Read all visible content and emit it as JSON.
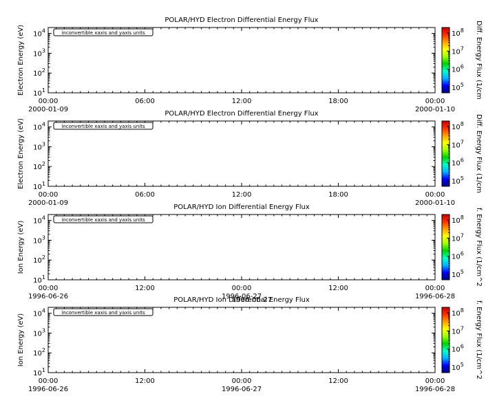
{
  "chart_data": [
    {
      "type": "heatmap",
      "title": "POLAR/HYD  Electron Differential Energy Flux",
      "ylabel": "Electron Energy (eV)",
      "ylim": [
        10,
        20000
      ],
      "yscale": "log",
      "y_ticks": [
        {
          "base": "10",
          "exp": "1"
        },
        {
          "base": "10",
          "exp": "2"
        },
        {
          "base": "10",
          "exp": "3"
        },
        {
          "base": "10",
          "exp": "4"
        }
      ],
      "x_ticks": [
        {
          "time": "00:00",
          "date": "2000-01-09"
        },
        {
          "time": "06:00",
          "date": ""
        },
        {
          "time": "12:00",
          "date": ""
        },
        {
          "time": "18:00",
          "date": ""
        },
        {
          "time": "00:00",
          "date": "2000-01-10"
        }
      ],
      "annotation": "inconvertible xaxis and yaxis units",
      "colorbar": {
        "label": "Diff. Energy Flux (1/cm",
        "ticks": [
          {
            "base": "10",
            "exp": "5"
          },
          {
            "base": "10",
            "exp": "6"
          },
          {
            "base": "10",
            "exp": "7"
          },
          {
            "base": "10",
            "exp": "8"
          }
        ]
      },
      "overlay_text": ""
    },
    {
      "type": "heatmap",
      "title": "POLAR/HYD  Electron Differential Energy Flux",
      "ylabel": "Electron Energy (eV)",
      "ylim": [
        10,
        20000
      ],
      "yscale": "log",
      "y_ticks": [
        {
          "base": "10",
          "exp": "1"
        },
        {
          "base": "10",
          "exp": "2"
        },
        {
          "base": "10",
          "exp": "3"
        },
        {
          "base": "10",
          "exp": "4"
        }
      ],
      "x_ticks": [
        {
          "time": "00:00",
          "date": "2000-01-09"
        },
        {
          "time": "06:00",
          "date": ""
        },
        {
          "time": "12:00",
          "date": ""
        },
        {
          "time": "18:00",
          "date": ""
        },
        {
          "time": "00:00",
          "date": "2000-01-10"
        }
      ],
      "annotation": "inconvertible xaxis and yaxis units",
      "colorbar": {
        "label": "Diff. Energy Flux (1/cm",
        "ticks": [
          {
            "base": "10",
            "exp": "5"
          },
          {
            "base": "10",
            "exp": "6"
          },
          {
            "base": "10",
            "exp": "7"
          },
          {
            "base": "10",
            "exp": "8"
          }
        ]
      },
      "overlay_text": ""
    },
    {
      "type": "heatmap",
      "title": "POLAR/HYD  Ion Differential Energy Flux",
      "ylabel": "Ion Energy (eV)",
      "ylim": [
        10,
        20000
      ],
      "yscale": "log",
      "y_ticks": [
        {
          "base": "10",
          "exp": "1"
        },
        {
          "base": "10",
          "exp": "2"
        },
        {
          "base": "10",
          "exp": "3"
        },
        {
          "base": "10",
          "exp": "4"
        }
      ],
      "x_ticks": [
        {
          "time": "00:00",
          "date": "1996-06-26"
        },
        {
          "time": "12:00",
          "date": ""
        },
        {
          "time": "00:00",
          "date": "1996-06-27"
        },
        {
          "time": "12:00",
          "date": ""
        },
        {
          "time": "00:00",
          "date": "1996-06-28"
        }
      ],
      "annotation": "inconvertible xaxis and yaxis units",
      "colorbar": {
        "label": "f. Energy Flux (1/cm^2",
        "ticks": [
          {
            "base": "10",
            "exp": "5"
          },
          {
            "base": "10",
            "exp": "6"
          },
          {
            "base": "10",
            "exp": "7"
          },
          {
            "base": "10",
            "exp": "8"
          }
        ]
      },
      "overlay_text": ""
    },
    {
      "type": "heatmap",
      "title": "POLAR/HYD  Ion Differential Energy Flux",
      "ylabel": "Ion Energy (eV)",
      "ylim": [
        10,
        20000
      ],
      "yscale": "log",
      "y_ticks": [
        {
          "base": "10",
          "exp": "1"
        },
        {
          "base": "10",
          "exp": "2"
        },
        {
          "base": "10",
          "exp": "3"
        },
        {
          "base": "10",
          "exp": "4"
        }
      ],
      "x_ticks": [
        {
          "time": "00:00",
          "date": "1996-06-26"
        },
        {
          "time": "12:00",
          "date": ""
        },
        {
          "time": "00:00",
          "date": "1996-06-27"
        },
        {
          "time": "12:00",
          "date": ""
        },
        {
          "time": "00:00",
          "date": "1996-06-28"
        }
      ],
      "annotation": "inconvertible xaxis and yaxis units",
      "colorbar": {
        "label": "f. Energy Flux (1/cm^2",
        "ticks": [
          {
            "base": "10",
            "exp": "5"
          },
          {
            "base": "10",
            "exp": "6"
          },
          {
            "base": "10",
            "exp": "7"
          },
          {
            "base": "10",
            "exp": "8"
          }
        ]
      },
      "overlay_text": "1996-06-27"
    }
  ],
  "colors": {
    "axis": "#000000",
    "background": "#ffffff",
    "colorbar_gradient": [
      "#000080",
      "#0000ff",
      "#00b4ff",
      "#00ffc8",
      "#00d000",
      "#a0ff00",
      "#ffff00",
      "#ffa000",
      "#ff3000",
      "#c00000"
    ]
  }
}
